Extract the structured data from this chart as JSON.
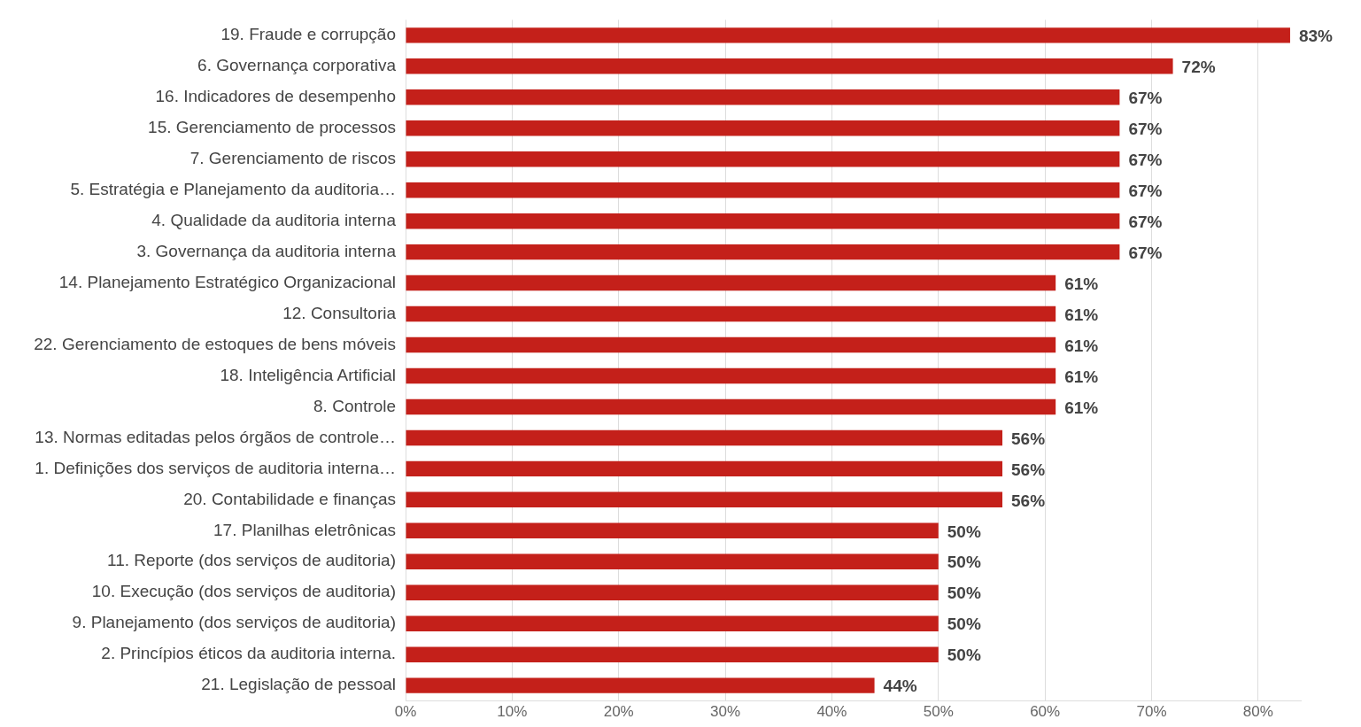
{
  "chart_data": {
    "type": "bar",
    "orientation": "horizontal",
    "categories": [
      "19. Fraude e corrupção",
      "6. Governança corporativa",
      "16. Indicadores de desempenho",
      "15. Gerenciamento de processos",
      "7. Gerenciamento de riscos",
      "5. Estratégia e Planejamento da auditoria…",
      "4. Qualidade da auditoria interna",
      "3. Governança da auditoria interna",
      "14. Planejamento Estratégico Organizacional",
      "12. Consultoria",
      "22. Gerenciamento de estoques de bens móveis",
      "18. Inteligência Artificial",
      "8. Controle",
      "13. Normas editadas pelos órgãos de controle…",
      "1. Definições dos serviços de auditoria interna…",
      "20. Contabilidade e finanças",
      "17. Planilhas eletrônicas",
      "11. Reporte (dos serviços de auditoria)",
      "10. Execução (dos serviços de auditoria)",
      "9. Planejamento (dos serviços de auditoria)",
      "2. Princípios éticos da auditoria interna.",
      "21. Legislação de pessoal"
    ],
    "values": [
      83,
      72,
      67,
      67,
      67,
      67,
      67,
      67,
      61,
      61,
      61,
      61,
      61,
      56,
      56,
      56,
      50,
      50,
      50,
      50,
      50,
      44
    ],
    "value_labels": [
      "83%",
      "72%",
      "67%",
      "67%",
      "67%",
      "67%",
      "67%",
      "67%",
      "61%",
      "61%",
      "61%",
      "61%",
      "61%",
      "56%",
      "56%",
      "56%",
      "50%",
      "50%",
      "50%",
      "50%",
      "50%",
      "44%"
    ],
    "color": "#c4201a",
    "xlim": [
      0,
      84
    ],
    "xticks": [
      {
        "value": 0,
        "label": "0%"
      },
      {
        "value": 10,
        "label": "10%"
      },
      {
        "value": 20,
        "label": "20%"
      },
      {
        "value": 30,
        "label": "30%"
      },
      {
        "value": 40,
        "label": "40%"
      },
      {
        "value": 50,
        "label": "50%"
      },
      {
        "value": 60,
        "label": "60%"
      },
      {
        "value": 70,
        "label": "70%"
      },
      {
        "value": 80,
        "label": "80%"
      }
    ],
    "grid": "x"
  }
}
